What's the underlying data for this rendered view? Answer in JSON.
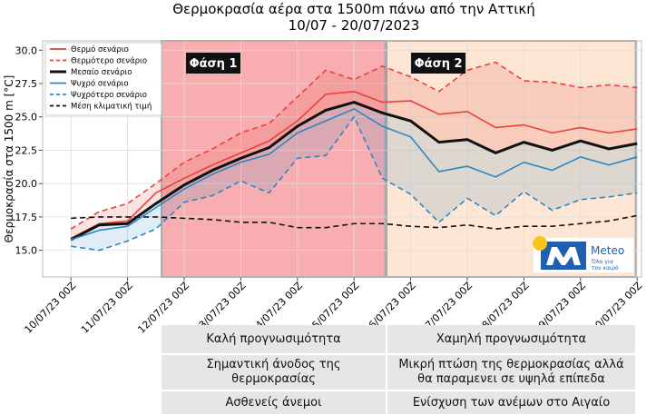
{
  "chart_data": {
    "type": "line",
    "title": "Θερμοκρασία αέρα στα 1500m πάνω από την Αττική",
    "subtitle": "10/07 - 20/07/2023",
    "y_label": "Θερμοκρασία στα 1500 m [°C]",
    "categories": [
      "10/07/23 00Z",
      null,
      "11/07/23 00Z",
      null,
      "12/07/23 00Z",
      null,
      "13/07/23 00Z",
      null,
      "14/07/23 00Z",
      null,
      "15/07/23 00Z",
      null,
      "16/07/23 00Z",
      null,
      "17/07/23 00Z",
      null,
      "18/07/23 00Z",
      null,
      "19/07/23 00Z",
      null,
      "20/07/23 00Z"
    ],
    "ylim": [
      13,
      30.7
    ],
    "yticks": [
      {
        "value": 15,
        "label": "15.0"
      },
      17.5,
      {
        "value": 20,
        "label": "20.0"
      },
      22.5,
      {
        "value": 25,
        "label": "25.0"
      },
      27.5,
      {
        "value": 30,
        "label": "30.0"
      }
    ],
    "grid": true,
    "legend": "upper left",
    "phases": [
      "Φάση 1",
      "Φάση 2"
    ],
    "series": [
      {
        "name": "Θερμό σενάριο",
        "color": "#e8413e",
        "dashed": false,
        "values": [
          15.9,
          17.0,
          17.2,
          19.3,
          20.4,
          21.4,
          22.3,
          23.2,
          24.7,
          26.7,
          26.9,
          26.1,
          26.2,
          25.2,
          25.4,
          24.2,
          24.4,
          23.8,
          24.2,
          23.8,
          24.1
        ]
      },
      {
        "name": "Θερμότερο σενάριο",
        "color": "#e8413e",
        "dashed": true,
        "values": [
          16.6,
          17.9,
          18.5,
          20.0,
          21.6,
          22.6,
          23.8,
          24.5,
          26.5,
          28.5,
          27.8,
          28.8,
          28.0,
          26.9,
          28.5,
          29.1,
          27.7,
          27.6,
          27.2,
          27.4,
          27.2
        ]
      },
      {
        "name": "Μεσαίο σενάριο",
        "color": "#111111",
        "dashed": false,
        "values": [
          15.8,
          16.9,
          17.0,
          18.5,
          19.9,
          21.0,
          21.9,
          22.7,
          24.3,
          25.5,
          26.1,
          25.3,
          24.7,
          23.1,
          23.3,
          22.3,
          23.1,
          22.5,
          23.2,
          22.6,
          23.0
        ]
      },
      {
        "name": "Ψυχρό σενάριο",
        "color": "#2e86c1",
        "dashed": false,
        "values": [
          15.8,
          16.5,
          16.8,
          18.2,
          19.6,
          20.7,
          21.6,
          22.2,
          23.8,
          24.7,
          25.6,
          24.3,
          23.5,
          20.9,
          21.3,
          20.5,
          21.6,
          21.0,
          22.0,
          21.4,
          22.0
        ]
      },
      {
        "name": "Ψυχρότερο σενάριο",
        "color": "#2e86c1",
        "dashed": true,
        "values": [
          15.3,
          15.0,
          15.7,
          16.6,
          18.6,
          19.1,
          20.2,
          19.3,
          21.9,
          22.1,
          25.0,
          20.4,
          19.2,
          17.1,
          18.9,
          17.6,
          19.4,
          18.0,
          18.8,
          19.0,
          19.3
        ]
      },
      {
        "name": "Μέση κλιματική τιμή",
        "color": "#111111",
        "dashed": true,
        "values": [
          17.4,
          17.5,
          17.5,
          17.5,
          17.4,
          17.3,
          17.1,
          17.1,
          16.7,
          16.7,
          17.0,
          17.0,
          16.8,
          16.7,
          16.9,
          16.6,
          16.8,
          16.8,
          17.0,
          17.2,
          17.6
        ]
      }
    ]
  },
  "logo": {
    "name": "Meteo",
    "tagline_1": "Όλα για",
    "tagline_2": "τον καιρό"
  },
  "table": {
    "rows": [
      [
        "Καλή προγνωσιμότητα",
        "Χαμηλή προγνωσιμότητα"
      ],
      [
        "Σημαντική άνοδος της θερμοκρασίας",
        "Μικρή πτώση της θερμοκρασίας αλλά θα παραμενει σε υψηλά επίπεδα"
      ],
      [
        "Ασθενείς άνεμοι",
        "Ενίσχυση των ανέμων στο Αιγαίο"
      ]
    ]
  }
}
